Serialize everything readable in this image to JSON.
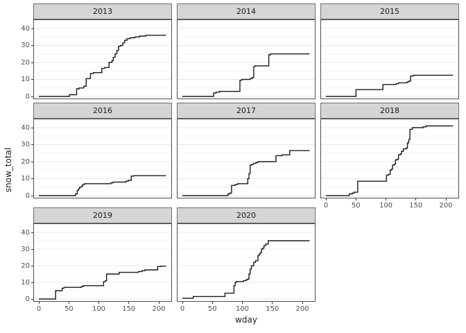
{
  "chart_data": {
    "type": "line",
    "subtype": "step-cumulative",
    "title": "",
    "xlabel": "wday",
    "ylabel": "snow_total",
    "x_ticks": [
      0,
      50,
      100,
      150,
      200
    ],
    "y_ticks": [
      0,
      10,
      20,
      30,
      40
    ],
    "xlim": [
      -10,
      222
    ],
    "ylim": [
      -2,
      43
    ],
    "grid": "horizontal major and minor only, no vertical gridlines",
    "legend": "none",
    "facets": [
      {
        "label": "2013",
        "row": 0,
        "col": 0,
        "final_value": 36,
        "steps": [
          [
            0,
            0
          ],
          [
            51,
            1
          ],
          [
            63,
            4.5
          ],
          [
            67,
            5
          ],
          [
            75,
            6
          ],
          [
            79,
            10.5
          ],
          [
            86,
            13.5
          ],
          [
            91,
            14
          ],
          [
            105,
            16.5
          ],
          [
            110,
            17
          ],
          [
            117,
            20
          ],
          [
            122,
            21
          ],
          [
            124,
            23
          ],
          [
            127,
            25
          ],
          [
            130,
            27
          ],
          [
            133,
            29.5
          ],
          [
            136,
            30
          ],
          [
            140,
            31.5
          ],
          [
            143,
            33
          ],
          [
            147,
            34
          ],
          [
            152,
            34.5
          ],
          [
            160,
            35
          ],
          [
            168,
            35.5
          ],
          [
            178,
            36
          ],
          [
            212,
            36
          ]
        ]
      },
      {
        "label": "2014",
        "row": 0,
        "col": 1,
        "final_value": 25,
        "steps": [
          [
            0,
            0
          ],
          [
            52,
            2
          ],
          [
            56,
            2.5
          ],
          [
            62,
            3
          ],
          [
            96,
            9.5
          ],
          [
            99,
            10
          ],
          [
            113,
            10.5
          ],
          [
            116,
            11
          ],
          [
            119,
            17.5
          ],
          [
            121,
            18
          ],
          [
            144,
            24.5
          ],
          [
            147,
            25
          ],
          [
            212,
            25
          ]
        ]
      },
      {
        "label": "2015",
        "row": 0,
        "col": 2,
        "final_value": 12.5,
        "steps": [
          [
            0,
            0
          ],
          [
            50,
            4
          ],
          [
            95,
            7
          ],
          [
            117,
            7.5
          ],
          [
            121,
            8
          ],
          [
            135,
            8.5
          ],
          [
            138,
            9
          ],
          [
            141,
            12
          ],
          [
            146,
            12.5
          ],
          [
            212,
            12.5
          ]
        ]
      },
      {
        "label": "2016",
        "row": 1,
        "col": 0,
        "final_value": 11.7,
        "steps": [
          [
            0,
            0
          ],
          [
            61,
            1
          ],
          [
            64,
            3
          ],
          [
            66,
            4
          ],
          [
            68,
            5
          ],
          [
            71,
            5.5
          ],
          [
            73,
            6.5
          ],
          [
            76,
            7
          ],
          [
            120,
            7.5
          ],
          [
            124,
            8
          ],
          [
            145,
            8.5
          ],
          [
            149,
            9
          ],
          [
            154,
            11.5
          ],
          [
            158,
            11.7
          ],
          [
            212,
            11.7
          ]
        ]
      },
      {
        "label": "2017",
        "row": 1,
        "col": 1,
        "final_value": 26.5,
        "steps": [
          [
            0,
            0
          ],
          [
            76,
            1
          ],
          [
            79,
            1.5
          ],
          [
            82,
            6
          ],
          [
            88,
            6.5
          ],
          [
            92,
            7
          ],
          [
            109,
            10
          ],
          [
            111,
            13
          ],
          [
            113,
            18
          ],
          [
            116,
            18.5
          ],
          [
            119,
            19
          ],
          [
            123,
            19.5
          ],
          [
            126,
            20
          ],
          [
            156,
            23.5
          ],
          [
            166,
            24
          ],
          [
            179,
            26.5
          ],
          [
            212,
            26.5
          ]
        ]
      },
      {
        "label": "2018",
        "row": 1,
        "col": 2,
        "final_value": 41,
        "steps": [
          [
            0,
            0
          ],
          [
            39,
            1
          ],
          [
            44,
            1.5
          ],
          [
            47,
            2
          ],
          [
            53,
            8.5
          ],
          [
            101,
            12
          ],
          [
            104,
            12.5
          ],
          [
            107,
            15
          ],
          [
            109,
            15.5
          ],
          [
            111,
            18
          ],
          [
            114,
            18.5
          ],
          [
            116,
            21
          ],
          [
            119,
            21.5
          ],
          [
            121,
            24
          ],
          [
            124,
            24.5
          ],
          [
            126,
            26
          ],
          [
            129,
            27.5
          ],
          [
            134,
            28
          ],
          [
            136,
            31
          ],
          [
            138,
            33
          ],
          [
            140,
            39
          ],
          [
            144,
            40
          ],
          [
            162,
            40.5
          ],
          [
            167,
            41
          ],
          [
            212,
            41
          ]
        ]
      },
      {
        "label": "2019",
        "row": 2,
        "col": 0,
        "final_value": 19.7,
        "steps": [
          [
            0,
            0
          ],
          [
            28,
            5
          ],
          [
            39,
            6.5
          ],
          [
            42,
            7
          ],
          [
            71,
            7.5
          ],
          [
            74,
            8
          ],
          [
            108,
            10.5
          ],
          [
            111,
            11
          ],
          [
            113,
            15
          ],
          [
            134,
            16
          ],
          [
            166,
            16.5
          ],
          [
            172,
            17
          ],
          [
            177,
            17.5
          ],
          [
            198,
            19.5
          ],
          [
            203,
            19.7
          ],
          [
            212,
            19.7
          ]
        ]
      },
      {
        "label": "2020",
        "row": 2,
        "col": 1,
        "final_value": 35,
        "steps": [
          [
            0,
            0.5
          ],
          [
            18,
            1.5
          ],
          [
            71,
            3.5
          ],
          [
            86,
            8
          ],
          [
            88,
            10
          ],
          [
            90,
            10.5
          ],
          [
            102,
            11
          ],
          [
            106,
            11.5
          ],
          [
            109,
            12
          ],
          [
            111,
            15
          ],
          [
            113,
            18
          ],
          [
            115,
            20
          ],
          [
            119,
            22
          ],
          [
            122,
            23
          ],
          [
            126,
            26
          ],
          [
            128,
            27
          ],
          [
            130,
            28
          ],
          [
            132,
            30
          ],
          [
            134,
            30.5
          ],
          [
            136,
            32
          ],
          [
            139,
            33
          ],
          [
            143,
            35
          ],
          [
            212,
            35
          ]
        ]
      }
    ]
  },
  "style": {
    "line_color": "#1a1a1a",
    "panel_border": "#4d4d4d",
    "strip_fill": "#d5d5d5",
    "grid_major": "#e8e8e8",
    "grid_minor": "#f4f4f4",
    "background": "#ffffff",
    "text_color": "#1a1a1a"
  }
}
